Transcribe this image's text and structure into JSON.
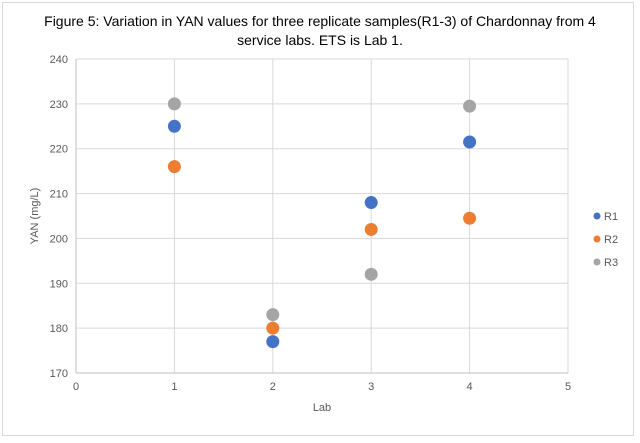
{
  "title_line1": "Figure 5: Variation in YAN values for three replicate samples(R1-3) of Chardonnay from 4",
  "title_line2": "service labs. ETS is Lab 1.",
  "chart_data": {
    "type": "scatter",
    "title": "Figure 5: Variation in YAN values for three replicate samples(R1-3) of Chardonnay from 4 service labs. ETS is Lab 1.",
    "xlabel": "Lab",
    "ylabel": "YAN (mg/L)",
    "xlim": [
      0,
      5
    ],
    "ylim": [
      170,
      240
    ],
    "xticks": [
      0,
      1,
      2,
      3,
      4,
      5
    ],
    "yticks": [
      170,
      180,
      190,
      200,
      210,
      220,
      230,
      240
    ],
    "grid": true,
    "legend_position": "right",
    "series": [
      {
        "name": "R1",
        "color": "#4472c4",
        "x": [
          1,
          2,
          3,
          4
        ],
        "y": [
          225,
          177,
          208,
          221.5
        ]
      },
      {
        "name": "R2",
        "color": "#ed7d31",
        "x": [
          1,
          2,
          3,
          4
        ],
        "y": [
          216,
          180,
          202,
          204.5
        ]
      },
      {
        "name": "R3",
        "color": "#a5a5a5",
        "x": [
          1,
          2,
          3,
          4
        ],
        "y": [
          230,
          183,
          192,
          229.5
        ]
      }
    ]
  }
}
